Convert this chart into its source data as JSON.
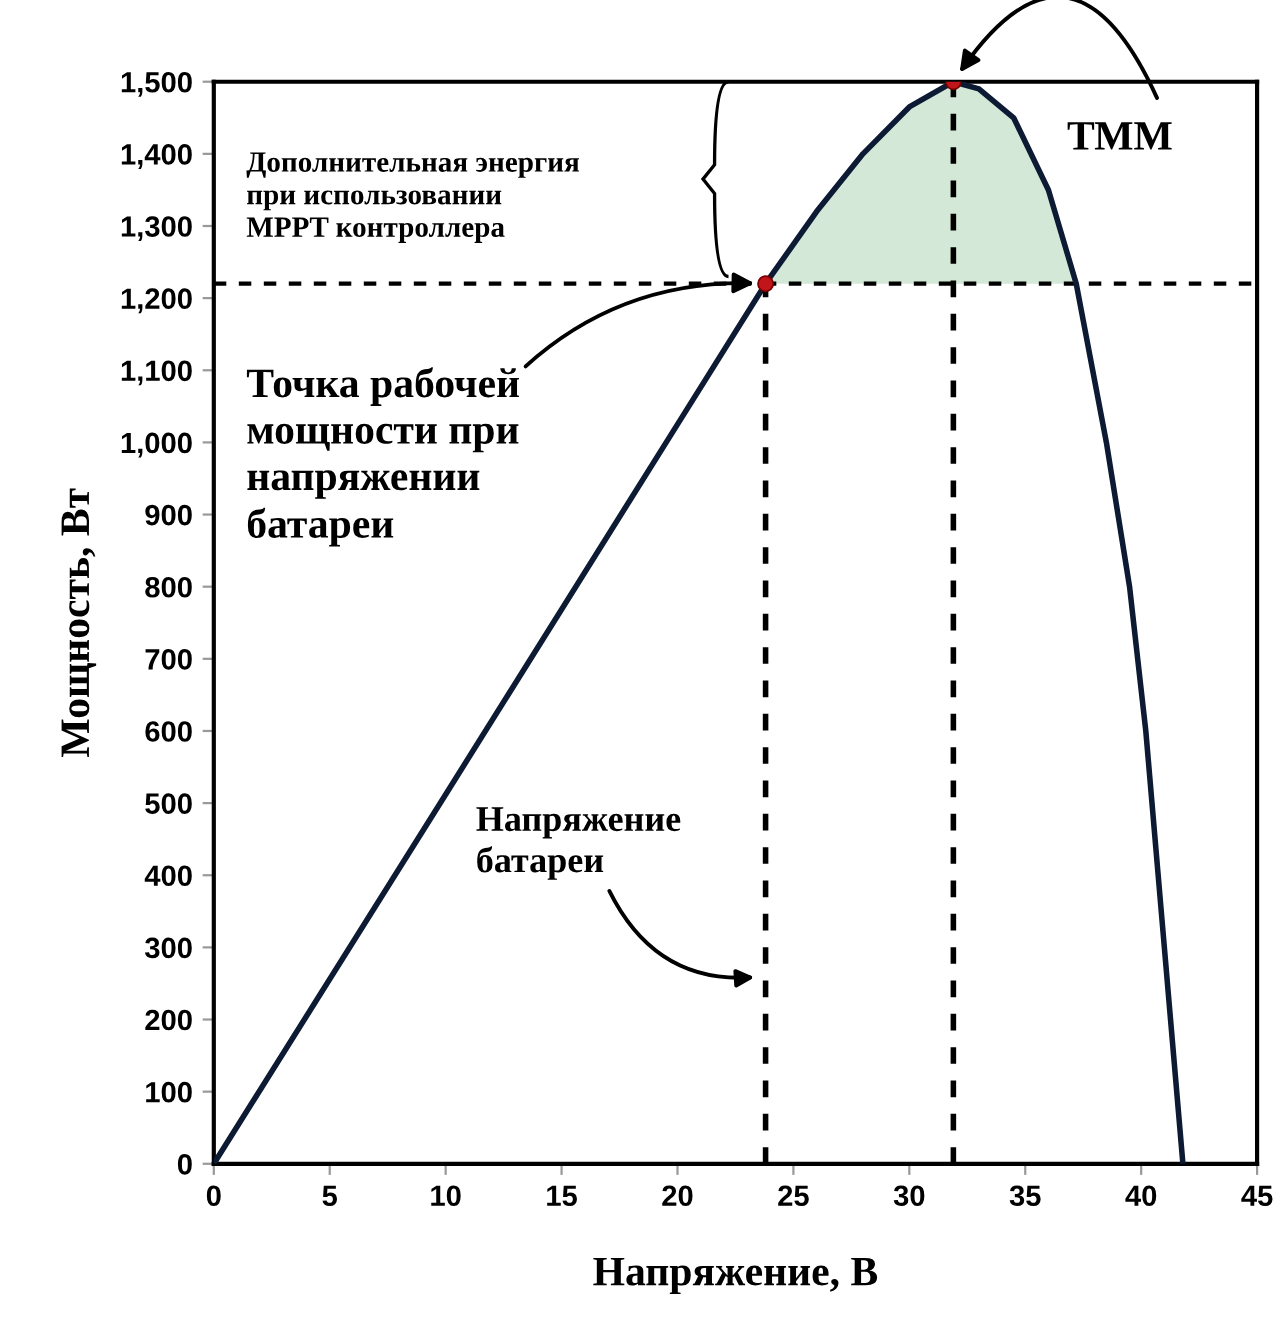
{
  "chart_data": {
    "type": "line",
    "xlabel": "Напряжение, В",
    "ylabel": "Мощность, Вт",
    "xlim": [
      0,
      45
    ],
    "xticks": [
      0,
      5,
      10,
      15,
      20,
      25,
      30,
      35,
      40,
      45
    ],
    "ylim": [
      0,
      1500
    ],
    "yticks": [
      0,
      100,
      200,
      300,
      400,
      500,
      600,
      700,
      800,
      900,
      {
        "value": 1000,
        "label": "1,000"
      },
      {
        "value": 1100,
        "label": "1,100"
      },
      {
        "value": 1200,
        "label": "1,200"
      },
      {
        "value": 1300,
        "label": "1,300"
      },
      {
        "value": 1400,
        "label": "1,400"
      },
      {
        "value": 1500,
        "label": "1,500"
      }
    ],
    "grid": false,
    "series": [
      {
        "type": "area",
        "color": "#d3e8d6",
        "x": [
          23.8,
          26,
          28,
          30,
          31.9,
          33,
          34.5,
          36,
          37.2
        ],
        "values": [
          1220,
          1320,
          1400,
          1465,
          1500,
          1490,
          1450,
          1350,
          1220
        ]
      },
      {
        "color": "#0d1a33",
        "line_style": "solid",
        "marker": "none",
        "x": [
          0,
          10,
          20,
          23.8,
          26,
          28,
          30,
          31.9,
          33,
          34.5,
          36,
          37.2,
          38.5,
          39.5,
          40.2,
          41,
          41.8
        ],
        "values": [
          0,
          512,
          1025,
          1220,
          1320,
          1400,
          1465,
          1500,
          1490,
          1450,
          1350,
          1220,
          1000,
          800,
          600,
          300,
          0
        ]
      },
      {
        "color": "#000000",
        "line_style": "dashed",
        "marker": "none",
        "x": [
          23.8,
          23.8
        ],
        "values": [
          0,
          1220
        ]
      },
      {
        "color": "#000000",
        "line_style": "dashed",
        "marker": "none",
        "x": [
          31.9,
          31.9
        ],
        "values": [
          0,
          1500
        ]
      },
      {
        "type": "scatter",
        "color": "#c0161b",
        "marker": "circle",
        "x": [
          23.8,
          31.9
        ],
        "values": [
          1220,
          1500
        ]
      }
    ],
    "ref_lines": [
      {
        "axis": "y",
        "value": 1220,
        "color": "#000000",
        "line_style": "dashed"
      }
    ],
    "annotations": [
      "ТММ",
      {
        "text": "Точка рабочей\nмощности при\nнапряжении\nбатареи",
        "x": 23.8,
        "y": 1220
      },
      "Напряжение\nбатареи",
      "Дополнительная энергия\nпри использовании\nMPPT контроллера"
    ]
  }
}
